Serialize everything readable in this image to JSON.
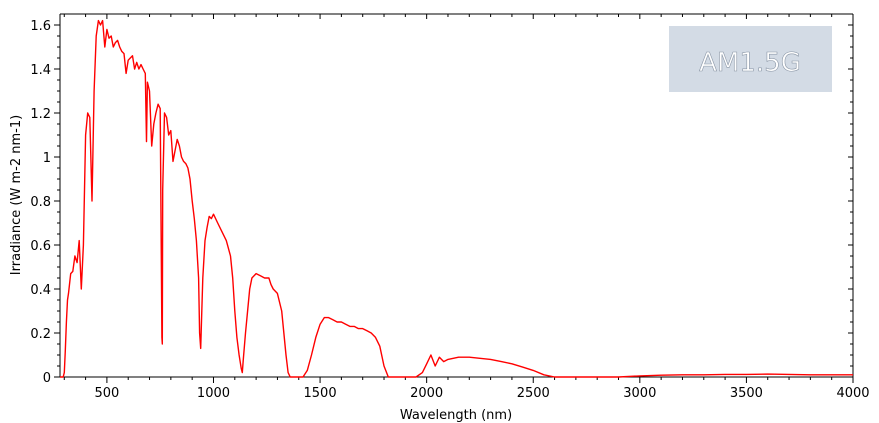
{
  "chart_data": {
    "type": "line",
    "title": "",
    "xlabel": "Wavelength (nm)",
    "ylabel": "Irradiance (W m-2 nm-1)",
    "xlim": [
      280,
      4000
    ],
    "ylim": [
      0,
      1.65
    ],
    "xticks": [
      500,
      1000,
      1500,
      2000,
      2500,
      3000,
      3500,
      4000
    ],
    "yticks": [
      0,
      0.2,
      0.4,
      0.6,
      0.8,
      1,
      1.2,
      1.4,
      1.6
    ],
    "grid": false,
    "legend": "none",
    "annotation": "AM1.5G",
    "colors": {
      "series": "#ff0000",
      "annotation_box": "#d3dbe5",
      "annotation_text": "#ffffff",
      "axis": "#000000"
    },
    "series": [
      {
        "x": [
          280,
          295,
          300,
          305,
          310,
          315,
          320,
          330,
          340,
          350,
          360,
          370,
          380,
          390,
          400,
          410,
          420,
          430,
          440,
          450,
          460,
          470,
          480,
          490,
          500,
          510,
          520,
          530,
          540,
          550,
          560,
          570,
          580,
          590,
          600,
          610,
          620,
          630,
          640,
          650,
          660,
          670,
          680,
          686,
          690,
          700,
          710,
          720,
          730,
          740,
          750,
          758,
          760,
          762,
          770,
          780,
          790,
          800,
          810,
          820,
          830,
          840,
          850,
          860,
          870,
          880,
          890,
          900,
          910,
          920,
          930,
          935,
          940,
          945,
          950,
          960,
          970,
          980,
          990,
          1000,
          1020,
          1040,
          1060,
          1080,
          1090,
          1100,
          1110,
          1120,
          1130,
          1135,
          1140,
          1150,
          1160,
          1170,
          1180,
          1200,
          1220,
          1240,
          1260,
          1270,
          1280,
          1300,
          1320,
          1340,
          1350,
          1360,
          1380,
          1400,
          1420,
          1440,
          1460,
          1480,
          1500,
          1520,
          1540,
          1560,
          1580,
          1600,
          1620,
          1640,
          1660,
          1680,
          1700,
          1720,
          1740,
          1760,
          1780,
          1800,
          1820,
          1850,
          1900,
          1950,
          1980,
          2000,
          2020,
          2040,
          2060,
          2080,
          2100,
          2150,
          2200,
          2250,
          2300,
          2350,
          2400,
          2450,
          2500,
          2550,
          2600,
          2700,
          2800,
          2900,
          3000,
          3100,
          3200,
          3300,
          3400,
          3500,
          3600,
          3700,
          3800,
          3900,
          4000
        ],
        "y": [
          0.0,
          0.0,
          0.02,
          0.12,
          0.25,
          0.35,
          0.38,
          0.47,
          0.48,
          0.55,
          0.52,
          0.62,
          0.4,
          0.6,
          1.1,
          1.2,
          1.18,
          0.8,
          1.3,
          1.55,
          1.62,
          1.6,
          1.62,
          1.5,
          1.58,
          1.54,
          1.55,
          1.5,
          1.52,
          1.53,
          1.5,
          1.48,
          1.47,
          1.38,
          1.44,
          1.45,
          1.46,
          1.4,
          1.43,
          1.4,
          1.42,
          1.4,
          1.38,
          1.07,
          1.34,
          1.3,
          1.05,
          1.15,
          1.2,
          1.24,
          1.22,
          0.18,
          0.15,
          0.85,
          1.2,
          1.18,
          1.1,
          1.12,
          0.98,
          1.03,
          1.08,
          1.05,
          1.0,
          0.98,
          0.97,
          0.95,
          0.9,
          0.8,
          0.72,
          0.62,
          0.45,
          0.2,
          0.13,
          0.3,
          0.45,
          0.62,
          0.68,
          0.73,
          0.72,
          0.74,
          0.7,
          0.66,
          0.62,
          0.55,
          0.45,
          0.3,
          0.18,
          0.1,
          0.04,
          0.02,
          0.08,
          0.2,
          0.3,
          0.4,
          0.45,
          0.47,
          0.46,
          0.45,
          0.45,
          0.42,
          0.4,
          0.38,
          0.3,
          0.1,
          0.02,
          0.0,
          0.0,
          0.0,
          0.0,
          0.03,
          0.1,
          0.18,
          0.24,
          0.27,
          0.27,
          0.26,
          0.25,
          0.25,
          0.24,
          0.23,
          0.23,
          0.22,
          0.22,
          0.21,
          0.2,
          0.18,
          0.14,
          0.05,
          0.0,
          0.0,
          0.0,
          0.0,
          0.02,
          0.06,
          0.1,
          0.05,
          0.09,
          0.07,
          0.08,
          0.09,
          0.09,
          0.085,
          0.08,
          0.07,
          0.06,
          0.045,
          0.03,
          0.01,
          0.0,
          0.0,
          0.0,
          0.0,
          0.005,
          0.008,
          0.01,
          0.01,
          0.012,
          0.012,
          0.013,
          0.012,
          0.01,
          0.01,
          0.01
        ]
      }
    ]
  }
}
